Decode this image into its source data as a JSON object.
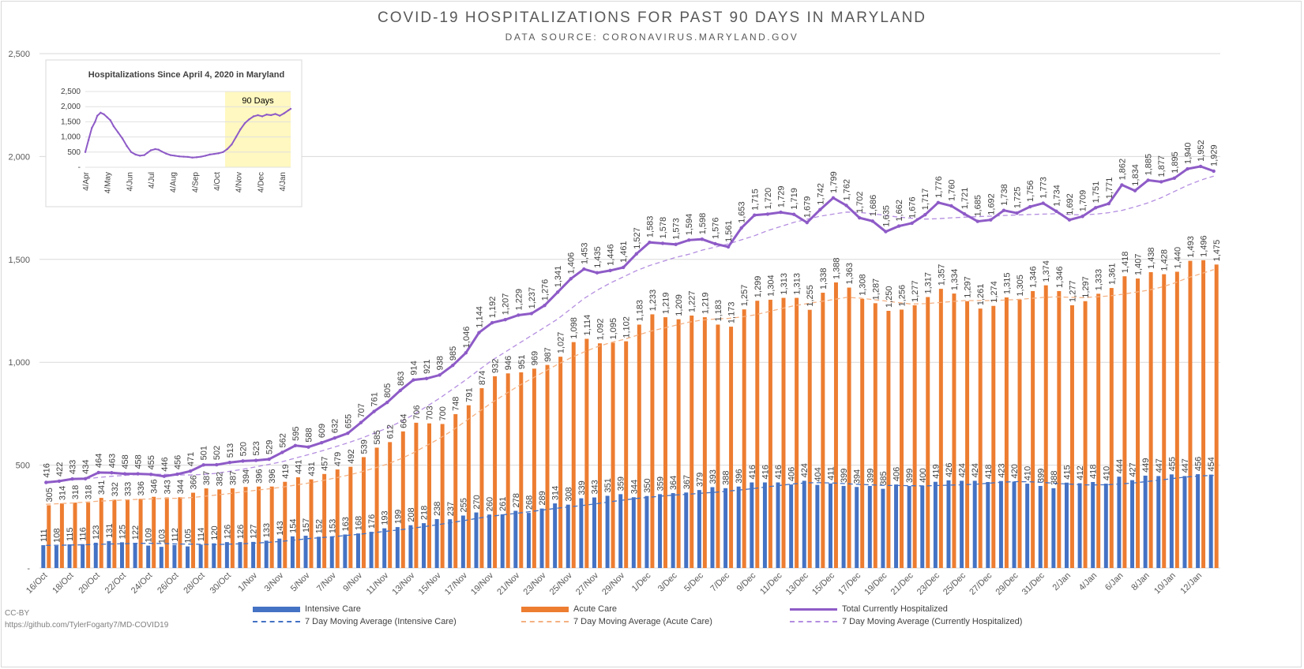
{
  "title": "COVID-19 HOSPITALIZATIONS FOR PAST 90 DAYS IN MARYLAND",
  "subtitle": "DATA SOURCE: CORONAVIRUS.MARYLAND.GOV",
  "footer": {
    "license": "CC-BY",
    "url": "https://github.com/TylerFogarty7/MD-COVID19"
  },
  "colors": {
    "icu": "#4472c4",
    "acute": "#ed7d31",
    "total": "#8e5bc7",
    "icu_ma": "#4472c4",
    "acute_ma": "#f4b183",
    "total_ma": "#b48ee0",
    "inset_highlight": "#fff8c0"
  },
  "chart_data": [
    {
      "type": "bar",
      "title": "COVID-19 HOSPITALIZATIONS FOR PAST 90 DAYS IN MARYLAND",
      "subtitle": "DATA SOURCE: CORONAVIRUS.MARYLAND.GOV",
      "x": [
        "16/Oct",
        "17/Oct",
        "18/Oct",
        "19/Oct",
        "20/Oct",
        "21/Oct",
        "22/Oct",
        "23/Oct",
        "24/Oct",
        "25/Oct",
        "26/Oct",
        "27/Oct",
        "28/Oct",
        "29/Oct",
        "30/Oct",
        "31/Oct",
        "1/Nov",
        "2/Nov",
        "3/Nov",
        "4/Nov",
        "5/Nov",
        "6/Nov",
        "7/Nov",
        "8/Nov",
        "9/Nov",
        "10/Nov",
        "11/Nov",
        "12/Nov",
        "13/Nov",
        "14/Nov",
        "15/Nov",
        "16/Nov",
        "17/Nov",
        "18/Nov",
        "19/Nov",
        "20/Nov",
        "21/Nov",
        "22/Nov",
        "23/Nov",
        "24/Nov",
        "25/Nov",
        "26/Nov",
        "27/Nov",
        "28/Nov",
        "29/Nov",
        "30/Nov",
        "1/Dec",
        "2/Dec",
        "3/Dec",
        "4/Dec",
        "5/Dec",
        "6/Dec",
        "7/Dec",
        "8/Dec",
        "9/Dec",
        "10/Dec",
        "11/Dec",
        "12/Dec",
        "13/Dec",
        "14/Dec",
        "15/Dec",
        "16/Dec",
        "17/Dec",
        "18/Dec",
        "19/Dec",
        "20/Dec",
        "21/Dec",
        "22/Dec",
        "23/Dec",
        "24/Dec",
        "25/Dec",
        "26/Dec",
        "27/Dec",
        "28/Dec",
        "29/Dec",
        "30/Dec",
        "31/Dec",
        "1/Jan",
        "2/Jan",
        "3/Jan",
        "4/Jan",
        "5/Jan",
        "6/Jan",
        "7/Jan",
        "8/Jan",
        "9/Jan",
        "10/Jan",
        "11/Jan",
        "12/Jan",
        "13/Jan"
      ],
      "x_tick_labels": [
        "16/Oct",
        "18/Oct",
        "20/Oct",
        "22/Oct",
        "24/Oct",
        "26/Oct",
        "28/Oct",
        "30/Oct",
        "1/Nov",
        "3/Nov",
        "5/Nov",
        "7/Nov",
        "9/Nov",
        "11/Nov",
        "13/Nov",
        "15/Nov",
        "17/Nov",
        "19/Nov",
        "21/Nov",
        "23/Nov",
        "25/Nov",
        "27/Nov",
        "29/Nov",
        "1/Dec",
        "3/Dec",
        "5/Dec",
        "7/Dec",
        "9/Dec",
        "11/Dec",
        "13/Dec",
        "15/Dec",
        "17/Dec",
        "19/Dec",
        "21/Dec",
        "23/Dec",
        "25/Dec",
        "27/Dec",
        "29/Dec",
        "31/Dec",
        "2/Jan",
        "4/Jan",
        "6/Jan",
        "8/Jan",
        "10/Jan",
        "12/Jan"
      ],
      "y_tick_labels": [
        "-",
        "500",
        "1,000",
        "1,500",
        "2,000",
        "2,500"
      ],
      "ylim": [
        0,
        2500
      ],
      "grid": true,
      "legend_position": "bottom",
      "series": [
        {
          "name": "Intensive Care",
          "type": "bar",
          "values": [
            111,
            108,
            115,
            116,
            123,
            131,
            125,
            122,
            109,
            103,
            112,
            105,
            114,
            120,
            126,
            126,
            127,
            133,
            143,
            154,
            157,
            152,
            153,
            163,
            168,
            176,
            193,
            199,
            208,
            218,
            238,
            237,
            255,
            270,
            260,
            261,
            278,
            268,
            289,
            314,
            308,
            339,
            343,
            351,
            359,
            344,
            350,
            359,
            364,
            367,
            379,
            393,
            388,
            396,
            416,
            416,
            416,
            406,
            424,
            404,
            411,
            399,
            394,
            399,
            385,
            406,
            399,
            400,
            419,
            426,
            424,
            424,
            418,
            423,
            420,
            410,
            399,
            388,
            415,
            412,
            418,
            410,
            444,
            427,
            449,
            447,
            455,
            447,
            456,
            454
          ]
        },
        {
          "name": "Acute Care",
          "type": "bar",
          "values": [
            305,
            314,
            318,
            318,
            341,
            332,
            333,
            336,
            346,
            343,
            344,
            366,
            387,
            382,
            387,
            394,
            396,
            396,
            419,
            441,
            431,
            457,
            479,
            492,
            539,
            585,
            612,
            664,
            706,
            703,
            700,
            748,
            791,
            874,
            932,
            946,
            951,
            969,
            987,
            1027,
            1098,
            1114,
            1092,
            1095,
            1102,
            1183,
            1233,
            1219,
            1209,
            1227,
            1219,
            1183,
            1173,
            1257,
            1299,
            1304,
            1313,
            1313,
            1255,
            1338,
            1388,
            1363,
            1308,
            1287,
            1250,
            1256,
            1277,
            1317,
            1357,
            1334,
            1297,
            1261,
            1274,
            1315,
            1305,
            1346,
            1374,
            1346,
            1277,
            1297,
            1333,
            1361,
            1418,
            1407,
            1438,
            1428,
            1440,
            1493,
            1496,
            1475
          ]
        },
        {
          "name": "Total Currently Hospitalized",
          "type": "line",
          "values": [
            416,
            422,
            433,
            434,
            464,
            463,
            458,
            458,
            455,
            446,
            456,
            471,
            501,
            502,
            513,
            520,
            523,
            529,
            562,
            595,
            588,
            609,
            632,
            655,
            707,
            761,
            805,
            863,
            914,
            921,
            938,
            985,
            1046,
            1144,
            1192,
            1207,
            1229,
            1237,
            1276,
            1341,
            1406,
            1453,
            1435,
            1446,
            1461,
            1527,
            1583,
            1578,
            1573,
            1594,
            1598,
            1576,
            1561,
            1653,
            1715,
            1720,
            1729,
            1719,
            1679,
            1742,
            1799,
            1762,
            1702,
            1686,
            1635,
            1662,
            1676,
            1717,
            1776,
            1760,
            1721,
            1685,
            1692,
            1738,
            1725,
            1756,
            1773,
            1734,
            1692,
            1709,
            1751,
            1771,
            1862,
            1834,
            1885,
            1877,
            1895,
            1940,
            1952,
            1929
          ]
        },
        {
          "name": "7 Day Moving Average (Intensive Care)",
          "type": "line",
          "values": [
            110,
            111,
            112,
            113,
            115,
            117,
            118,
            120,
            120,
            119,
            117,
            116,
            115,
            114,
            116,
            118,
            121,
            125,
            130,
            136,
            143,
            148,
            153,
            159,
            165,
            172,
            179,
            186,
            194,
            203,
            212,
            222,
            232,
            243,
            252,
            260,
            267,
            275,
            283,
            291,
            298,
            305,
            313,
            322,
            330,
            338,
            344,
            350,
            355,
            359,
            364,
            368,
            374,
            380,
            387,
            395,
            402,
            409,
            414,
            415,
            413,
            410,
            406,
            404,
            401,
            401,
            400,
            399,
            401,
            403,
            405,
            408,
            413,
            418,
            420,
            419,
            416,
            411,
            408,
            404,
            404,
            405,
            409,
            414,
            421,
            428,
            436,
            443,
            448,
            450
          ]
        },
        {
          "name": "7 Day Moving Average (Acute Care)",
          "type": "line",
          "values": [
            310,
            313,
            316,
            320,
            325,
            328,
            331,
            334,
            336,
            338,
            339,
            342,
            348,
            355,
            362,
            370,
            378,
            385,
            393,
            403,
            413,
            424,
            437,
            451,
            467,
            485,
            505,
            530,
            560,
            595,
            630,
            670,
            715,
            760,
            805,
            845,
            885,
            920,
            955,
            990,
            1022,
            1050,
            1075,
            1095,
            1110,
            1130,
            1150,
            1165,
            1180,
            1195,
            1205,
            1210,
            1213,
            1220,
            1230,
            1245,
            1260,
            1275,
            1285,
            1295,
            1305,
            1315,
            1312,
            1305,
            1298,
            1290,
            1283,
            1285,
            1290,
            1295,
            1300,
            1300,
            1300,
            1302,
            1305,
            1310,
            1315,
            1318,
            1316,
            1314,
            1318,
            1322,
            1330,
            1340,
            1350,
            1365,
            1385,
            1410,
            1430,
            1450
          ]
        },
        {
          "name": "7 Day Moving Average (Currently Hospitalized)",
          "type": "line",
          "values": [
            420,
            424,
            429,
            433,
            440,
            446,
            450,
            454,
            456,
            455,
            453,
            452,
            455,
            460,
            470,
            480,
            492,
            504,
            517,
            534,
            551,
            569,
            588,
            608,
            630,
            655,
            680,
            710,
            745,
            785,
            825,
            870,
            915,
            963,
            1010,
            1050,
            1090,
            1130,
            1170,
            1210,
            1260,
            1310,
            1350,
            1385,
            1415,
            1445,
            1470,
            1490,
            1510,
            1525,
            1545,
            1560,
            1575,
            1595,
            1615,
            1640,
            1660,
            1680,
            1695,
            1710,
            1720,
            1730,
            1728,
            1722,
            1714,
            1705,
            1700,
            1696,
            1698,
            1702,
            1705,
            1708,
            1710,
            1713,
            1716,
            1718,
            1720,
            1722,
            1718,
            1716,
            1720,
            1727,
            1738,
            1755,
            1775,
            1800,
            1830,
            1860,
            1885,
            1905
          ]
        }
      ]
    },
    {
      "type": "line",
      "title": "Hospitalizations Since April 4, 2020 in Maryland",
      "annotation": "90 Days",
      "x_tick_labels": [
        "4/Apr",
        "4/May",
        "4/Jun",
        "4/Jul",
        "4/Aug",
        "4/Sep",
        "4/Oct",
        "4/Nov",
        "4/Dec",
        "4/Jan"
      ],
      "y_tick_labels": [
        "-",
        "500",
        "1,000",
        "1,500",
        "2,000",
        "2,500"
      ],
      "ylim": [
        0,
        2500
      ],
      "grid": true,
      "highlight_range": [
        "16/Oct",
        "13/Jan"
      ],
      "x_month_index": [
        0,
        1,
        2,
        3,
        4,
        5,
        6,
        7,
        8,
        9
      ],
      "points": [
        [
          0,
          500
        ],
        [
          0.15,
          900
        ],
        [
          0.3,
          1300
        ],
        [
          0.45,
          1500
        ],
        [
          0.55,
          1700
        ],
        [
          0.7,
          1800
        ],
        [
          0.85,
          1750
        ],
        [
          1.0,
          1650
        ],
        [
          1.15,
          1550
        ],
        [
          1.3,
          1350
        ],
        [
          1.5,
          1150
        ],
        [
          1.7,
          950
        ],
        [
          1.9,
          700
        ],
        [
          2.1,
          500
        ],
        [
          2.3,
          420
        ],
        [
          2.5,
          380
        ],
        [
          2.7,
          400
        ],
        [
          2.85,
          480
        ],
        [
          3.0,
          560
        ],
        [
          3.2,
          600
        ],
        [
          3.35,
          580
        ],
        [
          3.5,
          520
        ],
        [
          3.7,
          450
        ],
        [
          3.9,
          400
        ],
        [
          4.1,
          380
        ],
        [
          4.3,
          360
        ],
        [
          4.5,
          350
        ],
        [
          4.7,
          340
        ],
        [
          4.9,
          320
        ],
        [
          5.1,
          330
        ],
        [
          5.3,
          350
        ],
        [
          5.5,
          380
        ],
        [
          5.7,
          420
        ],
        [
          5.9,
          440
        ],
        [
          6.1,
          460
        ],
        [
          6.3,
          500
        ],
        [
          6.5,
          600
        ],
        [
          6.7,
          750
        ],
        [
          6.9,
          1000
        ],
        [
          7.1,
          1250
        ],
        [
          7.3,
          1450
        ],
        [
          7.5,
          1580
        ],
        [
          7.7,
          1680
        ],
        [
          7.9,
          1720
        ],
        [
          8.1,
          1680
        ],
        [
          8.3,
          1740
        ],
        [
          8.5,
          1720
        ],
        [
          8.7,
          1760
        ],
        [
          8.9,
          1700
        ],
        [
          9.1,
          1780
        ],
        [
          9.3,
          1880
        ],
        [
          9.4,
          1930
        ]
      ]
    }
  ],
  "legend": [
    {
      "label": "Intensive Care",
      "kind": "bar",
      "series": 0
    },
    {
      "label": "Acute Care",
      "kind": "bar",
      "series": 1
    },
    {
      "label": "Total Currently Hospitalized",
      "kind": "line-marker",
      "series": 2
    },
    {
      "label": "7 Day Moving Average (Intensive Care)",
      "kind": "dash",
      "series": 3
    },
    {
      "label": "7 Day Moving Average (Acute Care)",
      "kind": "dash",
      "series": 4
    },
    {
      "label": "7 Day Moving Average (Currently Hospitalized)",
      "kind": "dash",
      "series": 5
    }
  ]
}
